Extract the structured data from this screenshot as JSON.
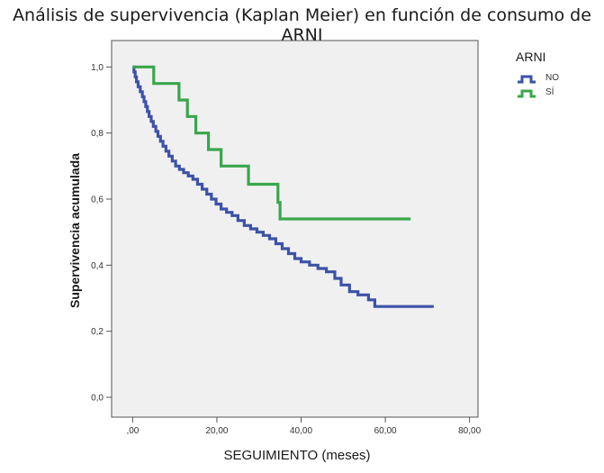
{
  "chart_data": {
    "type": "line",
    "title": "Análisis de supervivencia (Kaplan Meier) en función de consumo de ARNI",
    "xlabel": "SEGUIMIENTO (meses)",
    "ylabel": "Supervivencia acumulada",
    "xlim": [
      -5,
      82
    ],
    "ylim": [
      -0.06,
      1.08
    ],
    "xticks": [
      0,
      20,
      40,
      60,
      80
    ],
    "xtick_labels": [
      ",00",
      "20,00",
      "40,00",
      "60,00",
      "80,00"
    ],
    "yticks": [
      0,
      0.2,
      0.4,
      0.6,
      0.8,
      1.0
    ],
    "ytick_labels": [
      "0,0",
      "0,2",
      "0,4",
      "0,6",
      "0,8",
      "1,0"
    ],
    "legend": {
      "title": "ARNI",
      "position": "top-right"
    },
    "series": [
      {
        "name": "NO",
        "color": "#3c52a8",
        "steps": [
          [
            0,
            1.0
          ],
          [
            0.3,
            0.985
          ],
          [
            0.6,
            0.97
          ],
          [
            0.9,
            0.955
          ],
          [
            1.3,
            0.94
          ],
          [
            1.8,
            0.925
          ],
          [
            2.3,
            0.91
          ],
          [
            2.7,
            0.895
          ],
          [
            3.1,
            0.88
          ],
          [
            3.5,
            0.865
          ],
          [
            3.9,
            0.85
          ],
          [
            4.4,
            0.835
          ],
          [
            4.9,
            0.82
          ],
          [
            5.5,
            0.805
          ],
          [
            6.0,
            0.79
          ],
          [
            6.6,
            0.775
          ],
          [
            7.2,
            0.76
          ],
          [
            7.9,
            0.745
          ],
          [
            8.6,
            0.73
          ],
          [
            9.4,
            0.715
          ],
          [
            10.2,
            0.7
          ],
          [
            11.1,
            0.69
          ],
          [
            12.1,
            0.68
          ],
          [
            13.2,
            0.67
          ],
          [
            14.3,
            0.66
          ],
          [
            15.4,
            0.645
          ],
          [
            16.5,
            0.63
          ],
          [
            17.6,
            0.615
          ],
          [
            18.7,
            0.6
          ],
          [
            19.8,
            0.585
          ],
          [
            21.0,
            0.57
          ],
          [
            22.3,
            0.56
          ],
          [
            23.6,
            0.55
          ],
          [
            25.0,
            0.535
          ],
          [
            26.5,
            0.52
          ],
          [
            28.0,
            0.51
          ],
          [
            29.5,
            0.5
          ],
          [
            31.0,
            0.49
          ],
          [
            32.5,
            0.48
          ],
          [
            34.0,
            0.465
          ],
          [
            35.5,
            0.45
          ],
          [
            37.0,
            0.435
          ],
          [
            38.5,
            0.42
          ],
          [
            40.0,
            0.41
          ],
          [
            42.0,
            0.4
          ],
          [
            44.0,
            0.39
          ],
          [
            46.0,
            0.38
          ],
          [
            48.0,
            0.36
          ],
          [
            49.5,
            0.34
          ],
          [
            51.5,
            0.32
          ],
          [
            53.5,
            0.31
          ],
          [
            56.0,
            0.295
          ],
          [
            57.5,
            0.275
          ],
          [
            71.5,
            0.275
          ]
        ]
      },
      {
        "name": "SÍ",
        "color": "#3aa64c",
        "steps": [
          [
            0,
            1.0
          ],
          [
            5,
            0.95
          ],
          [
            11,
            0.9
          ],
          [
            13,
            0.85
          ],
          [
            15,
            0.8
          ],
          [
            18,
            0.75
          ],
          [
            21,
            0.7
          ],
          [
            27.5,
            0.645
          ],
          [
            34.5,
            0.59
          ],
          [
            35,
            0.54
          ],
          [
            66,
            0.54
          ]
        ]
      }
    ]
  }
}
